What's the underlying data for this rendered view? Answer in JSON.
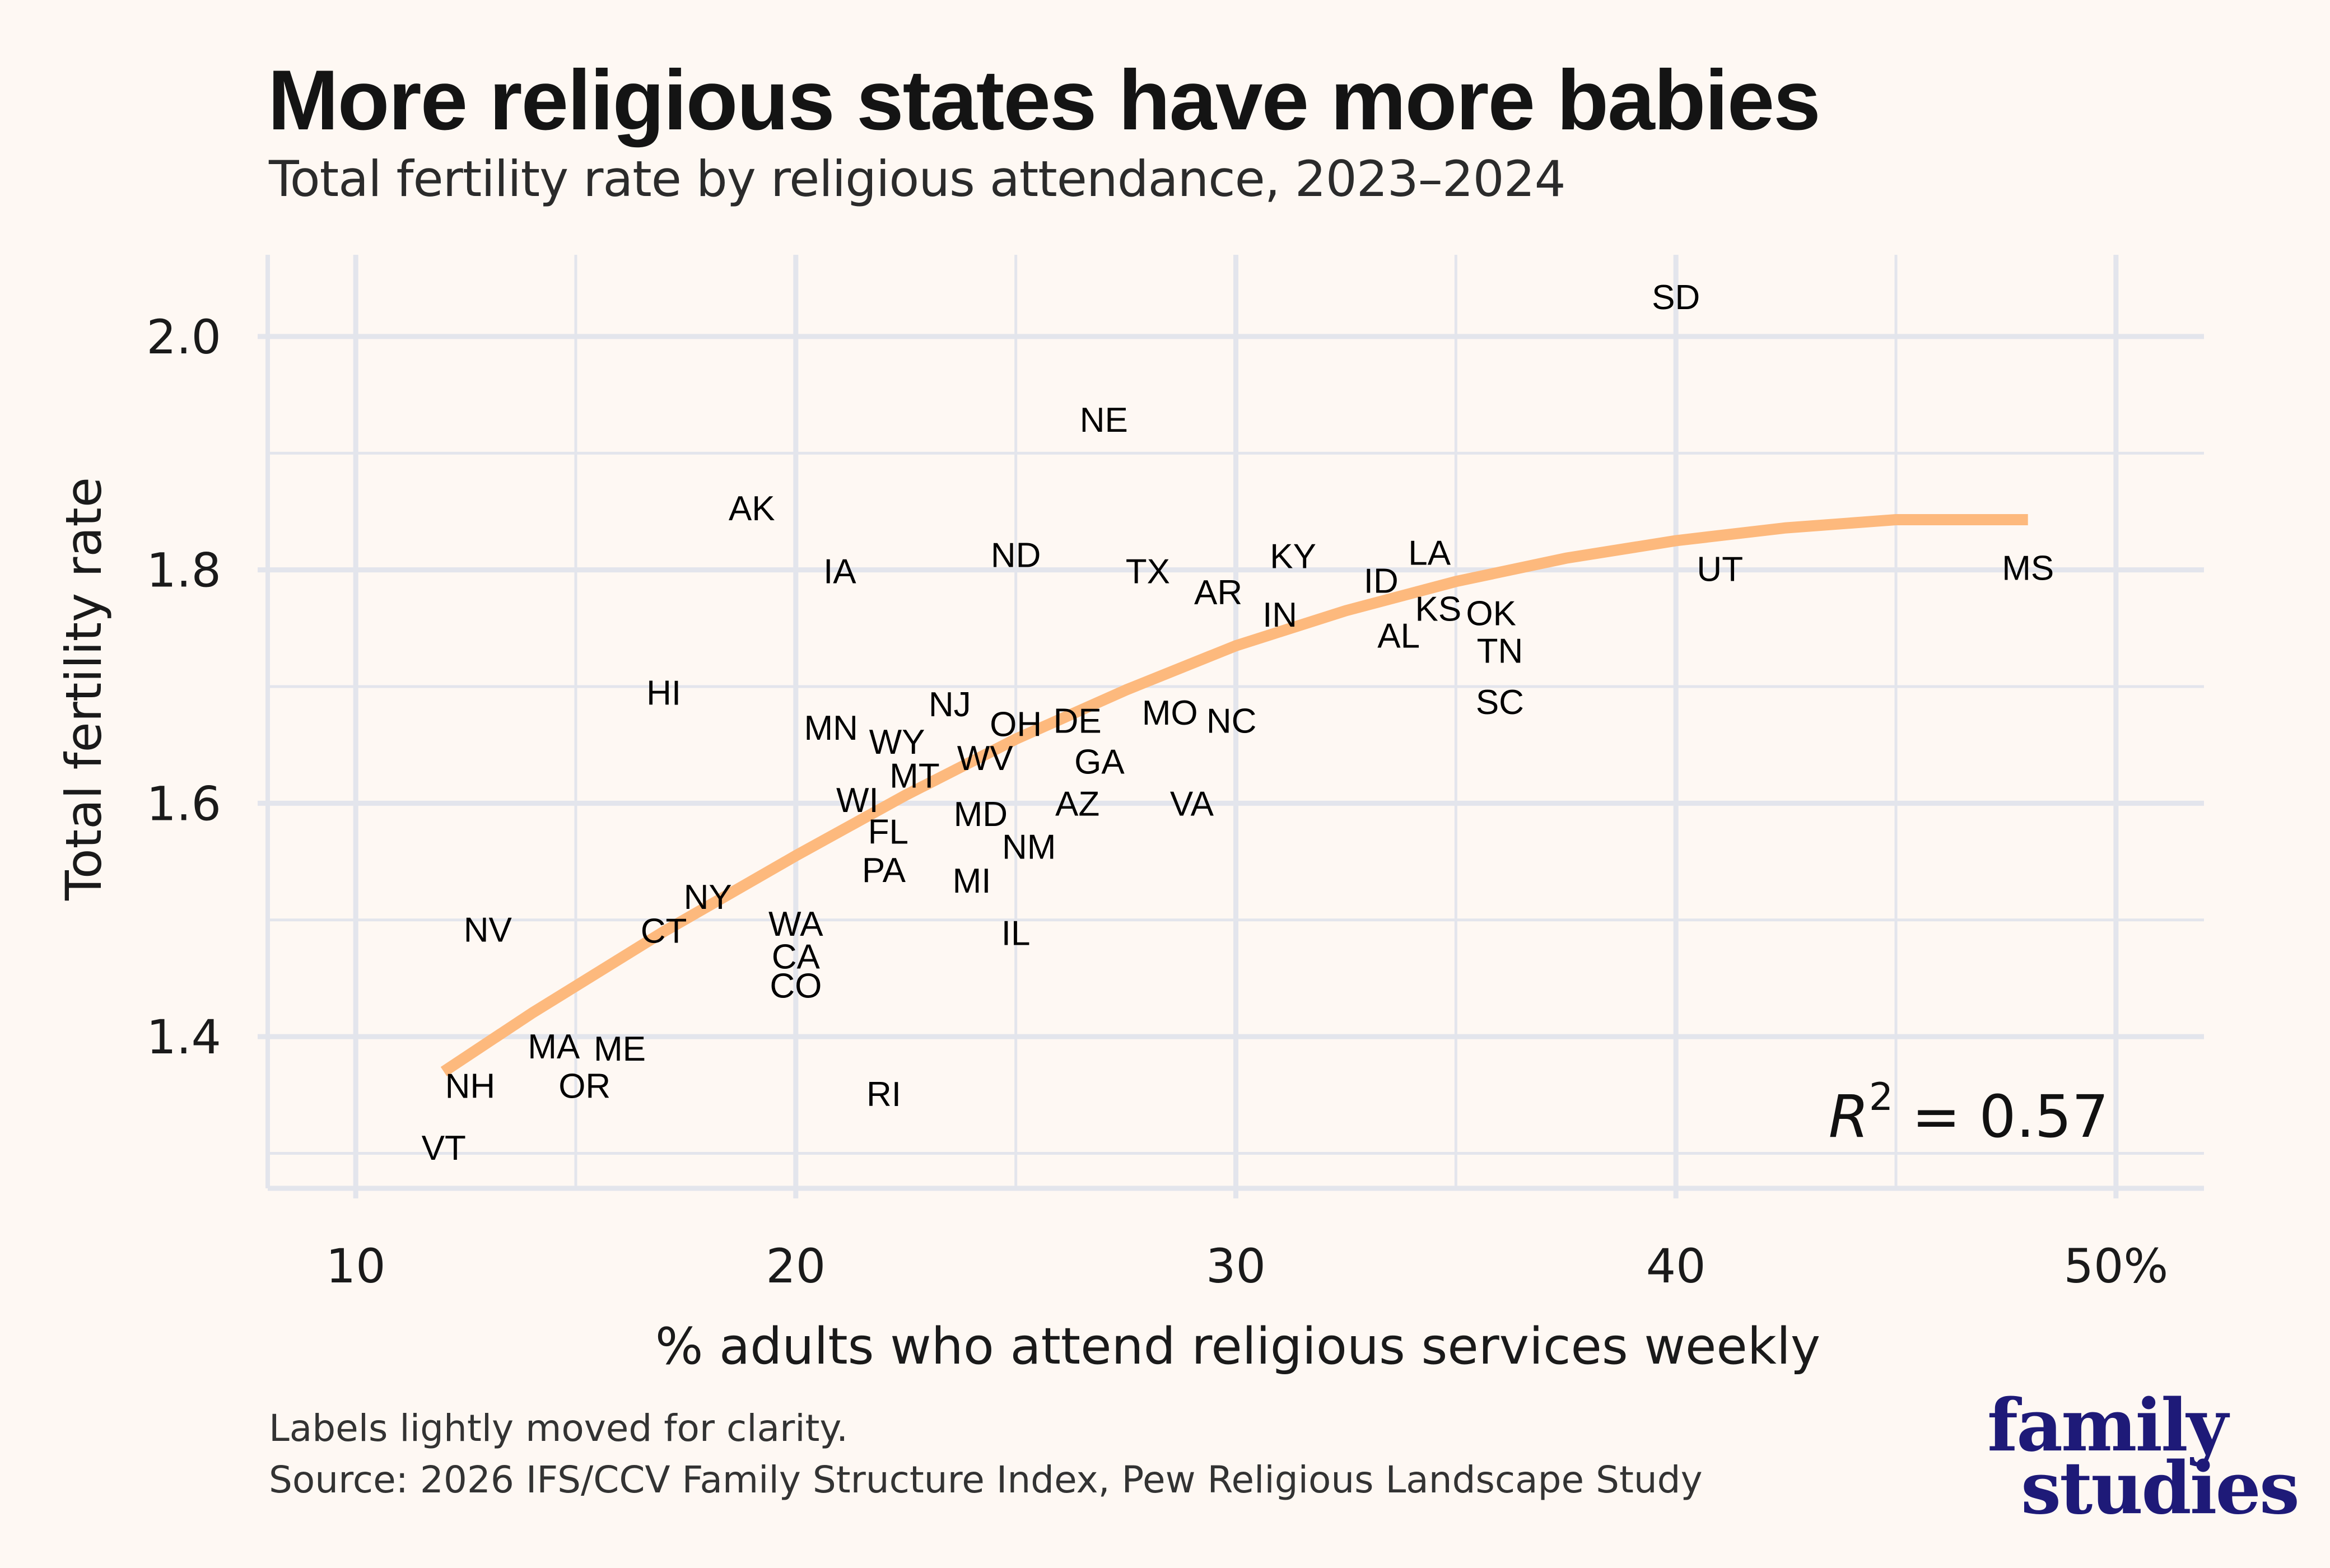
{
  "header": {
    "title": "More religious states have more babies",
    "subtitle": "Total fertility rate by religious attendance, 2023–2024"
  },
  "footer": {
    "note": "Labels lightly moved for clarity.",
    "source": "Source: 2026 IFS/CCV Family Structure Index, Pew Religious Landscape Study"
  },
  "logo": {
    "line1": "family",
    "line2": "studies",
    "color": "#1e1a78"
  },
  "chart_data": {
    "type": "scatter",
    "title": "More religious states have more babies",
    "subtitle": "Total fertility rate by religious attendance, 2023–2024",
    "xlabel": "% adults who attend religious services weekly",
    "ylabel": "Total fertility rate",
    "xlim": [
      8,
      52
    ],
    "ylim": [
      1.27,
      2.07
    ],
    "x_ticks": [
      10,
      20,
      30,
      40,
      50
    ],
    "x_tick_labels": [
      "10",
      "20",
      "30",
      "40",
      "50%"
    ],
    "y_ticks": [
      1.4,
      1.6,
      1.8,
      2.0
    ],
    "y_tick_labels": [
      "1.4",
      "1.6",
      "1.8",
      "2.0"
    ],
    "grid": true,
    "marker": "text-label",
    "points": [
      {
        "label": "SD",
        "x": 40.0,
        "y": 2.034
      },
      {
        "label": "NE",
        "x": 27.0,
        "y": 1.929
      },
      {
        "label": "AK",
        "x": 19.0,
        "y": 1.853
      },
      {
        "label": "IA",
        "x": 21.0,
        "y": 1.799
      },
      {
        "label": "ND",
        "x": 25.0,
        "y": 1.813
      },
      {
        "label": "TX",
        "x": 28.0,
        "y": 1.799
      },
      {
        "label": "AR",
        "x": 29.6,
        "y": 1.781
      },
      {
        "label": "KY",
        "x": 31.3,
        "y": 1.812
      },
      {
        "label": "IN",
        "x": 31.0,
        "y": 1.762
      },
      {
        "label": "ID",
        "x": 33.3,
        "y": 1.791
      },
      {
        "label": "LA",
        "x": 34.4,
        "y": 1.815
      },
      {
        "label": "KS",
        "x": 34.6,
        "y": 1.767
      },
      {
        "label": "OK",
        "x": 35.8,
        "y": 1.763
      },
      {
        "label": "AL",
        "x": 33.7,
        "y": 1.744
      },
      {
        "label": "TN",
        "x": 36.0,
        "y": 1.731
      },
      {
        "label": "SC",
        "x": 36.0,
        "y": 1.687
      },
      {
        "label": "UT",
        "x": 41.0,
        "y": 1.801
      },
      {
        "label": "MS",
        "x": 48.0,
        "y": 1.802
      },
      {
        "label": "HI",
        "x": 17.0,
        "y": 1.695
      },
      {
        "label": "MN",
        "x": 20.8,
        "y": 1.665
      },
      {
        "label": "WY",
        "x": 22.3,
        "y": 1.653
      },
      {
        "label": "NJ",
        "x": 23.5,
        "y": 1.685
      },
      {
        "label": "OH",
        "x": 25.0,
        "y": 1.668
      },
      {
        "label": "DE",
        "x": 26.4,
        "y": 1.671
      },
      {
        "label": "MO",
        "x": 28.5,
        "y": 1.678
      },
      {
        "label": "NC",
        "x": 29.9,
        "y": 1.671
      },
      {
        "label": "WV",
        "x": 24.3,
        "y": 1.639
      },
      {
        "label": "GA",
        "x": 26.9,
        "y": 1.636
      },
      {
        "label": "MT",
        "x": 22.7,
        "y": 1.624
      },
      {
        "label": "WI",
        "x": 21.4,
        "y": 1.603
      },
      {
        "label": "MD",
        "x": 24.2,
        "y": 1.591
      },
      {
        "label": "AZ",
        "x": 26.4,
        "y": 1.6
      },
      {
        "label": "VA",
        "x": 29.0,
        "y": 1.6
      },
      {
        "label": "FL",
        "x": 22.1,
        "y": 1.576
      },
      {
        "label": "NM",
        "x": 25.3,
        "y": 1.563
      },
      {
        "label": "PA",
        "x": 22.0,
        "y": 1.543
      },
      {
        "label": "MI",
        "x": 24.0,
        "y": 1.534
      },
      {
        "label": "NY",
        "x": 18.0,
        "y": 1.52
      },
      {
        "label": "NV",
        "x": 13.0,
        "y": 1.492
      },
      {
        "label": "CT",
        "x": 17.0,
        "y": 1.491
      },
      {
        "label": "WA",
        "x": 20.0,
        "y": 1.497
      },
      {
        "label": "IL",
        "x": 25.0,
        "y": 1.489
      },
      {
        "label": "CA",
        "x": 20.0,
        "y": 1.469
      },
      {
        "label": "CO",
        "x": 20.0,
        "y": 1.444
      },
      {
        "label": "MA",
        "x": 14.5,
        "y": 1.392
      },
      {
        "label": "ME",
        "x": 16.0,
        "y": 1.39
      },
      {
        "label": "NH",
        "x": 12.6,
        "y": 1.358
      },
      {
        "label": "OR",
        "x": 15.2,
        "y": 1.358
      },
      {
        "label": "RI",
        "x": 22.0,
        "y": 1.351
      },
      {
        "label": "VT",
        "x": 12.0,
        "y": 1.305
      }
    ],
    "trend": {
      "type": "quadratic",
      "color": "#fdb97d",
      "points": [
        {
          "x": 12,
          "y": 1.37
        },
        {
          "x": 14,
          "y": 1.42
        },
        {
          "x": 17,
          "y": 1.49
        },
        {
          "x": 20,
          "y": 1.555
        },
        {
          "x": 22.5,
          "y": 1.607
        },
        {
          "x": 25,
          "y": 1.655
        },
        {
          "x": 27.5,
          "y": 1.697
        },
        {
          "x": 30,
          "y": 1.735
        },
        {
          "x": 32.5,
          "y": 1.765
        },
        {
          "x": 35,
          "y": 1.79
        },
        {
          "x": 37.5,
          "y": 1.81
        },
        {
          "x": 40,
          "y": 1.825
        },
        {
          "x": 42.5,
          "y": 1.836
        },
        {
          "x": 45,
          "y": 1.843
        },
        {
          "x": 48,
          "y": 1.843
        }
      ]
    },
    "annotation": {
      "text_base": "R",
      "superscript": "2",
      "text_rest": " = 0.57",
      "r_squared": 0.57,
      "placement": "bottom-right"
    },
    "colors": {
      "background": "#fef8f3",
      "grid": "#e3e5ec",
      "text": "#111111"
    }
  }
}
